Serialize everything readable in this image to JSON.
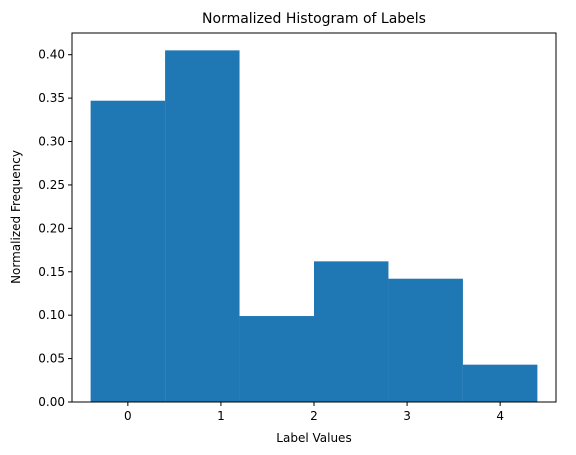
{
  "chart_data": {
    "type": "bar",
    "title": "Normalized Histogram of Labels",
    "xlabel": "Label Values",
    "ylabel": "Normalized Frequency",
    "bins": [
      {
        "start": -0.4,
        "end": 0.4,
        "value": 0.347
      },
      {
        "start": 0.4,
        "end": 1.2,
        "value": 0.405
      },
      {
        "start": 1.2,
        "end": 2.0,
        "value": 0.099
      },
      {
        "start": 2.0,
        "end": 2.8,
        "value": 0.162
      },
      {
        "start": 2.8,
        "end": 3.6,
        "value": 0.142
      },
      {
        "start": 3.6,
        "end": 4.4,
        "value": 0.043
      }
    ],
    "xlim": [
      -0.6,
      4.6
    ],
    "ylim": [
      0,
      0.425
    ],
    "x_ticks": [
      0,
      1,
      2,
      3,
      4
    ],
    "x_tick_labels": [
      "0",
      "1",
      "2",
      "3",
      "4"
    ],
    "y_ticks": [
      0.0,
      0.05,
      0.1,
      0.15,
      0.2,
      0.25,
      0.3,
      0.35,
      0.4
    ],
    "y_tick_labels": [
      "0.00",
      "0.05",
      "0.10",
      "0.15",
      "0.20",
      "0.25",
      "0.30",
      "0.35",
      "0.40"
    ],
    "grid": false,
    "bar_color": "#1f77b4"
  }
}
